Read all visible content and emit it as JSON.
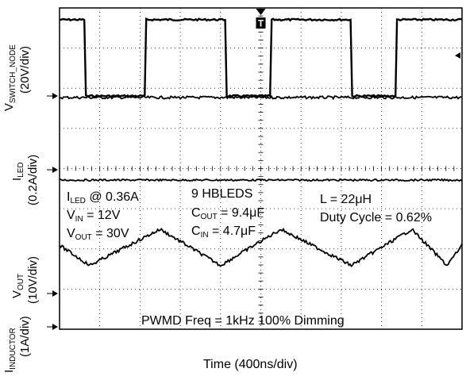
{
  "chart_data": {
    "type": "line",
    "title": "",
    "grid": true,
    "x_axis": {
      "label": "Time (400ns/div)",
      "divisions": 10,
      "per_div": "400ns",
      "range_ns": [
        0,
        4000
      ]
    },
    "y_grid_divisions": 8,
    "channels": [
      {
        "name": "V_SWITCH_NODE",
        "label_main": "V",
        "label_sub": "SWITCH_NODE",
        "scale": "(20V/div)",
        "high_div_above_ref": 1.9,
        "low_div_above_ref": 0.0,
        "high_intervals_ns": [
          [
            0,
            250
          ],
          [
            850,
            1650
          ],
          [
            2100,
            2900
          ],
          [
            3350,
            4000
          ]
        ]
      },
      {
        "name": "I_LED",
        "label_main": "I",
        "label_sub": "LED",
        "scale": "(0.2A/div)",
        "level_div_above_ref": 1.8,
        "ripple": "flat"
      },
      {
        "name": "V_OUT",
        "label_main": "V",
        "label_sub": "OUT",
        "scale": "(10V/div)",
        "ripple_peaks_ns": [
          1000,
          2200,
          3500
        ],
        "ripple_valleys_ns": [
          300,
          1600,
          2900,
          3850
        ],
        "peak_div_above_ref": 1.6,
        "valley_div_above_ref": 0.7
      },
      {
        "name": "I_INDUCTOR",
        "label_main": "I",
        "label_sub": "INDUCTOR",
        "scale": "(1A/div)"
      }
    ],
    "annotations": {
      "col1": [
        {
          "main": "I",
          "sub": "LED",
          "rest": " @ 0.36A"
        },
        {
          "main": "V",
          "sub": "IN",
          "rest": " = 12V"
        },
        {
          "main": "V",
          "sub": "OUT",
          "rest": " = 30V"
        }
      ],
      "col2": [
        {
          "main": "9 HBLEDS",
          "sub": "",
          "rest": ""
        },
        {
          "main": "C",
          "sub": "OUT",
          "rest": " = 9.4μF"
        },
        {
          "main": "C",
          "sub": "IN",
          "rest": " = 4.7μF"
        }
      ],
      "col3": [
        {
          "main": "L = 22μH",
          "sub": "",
          "rest": ""
        },
        {
          "main": "Duty Cycle = 0.62%",
          "sub": "",
          "rest": ""
        }
      ],
      "footer": "PWMD Freq = 1kHz 100% Dimming"
    },
    "trigger_marker": "T"
  }
}
